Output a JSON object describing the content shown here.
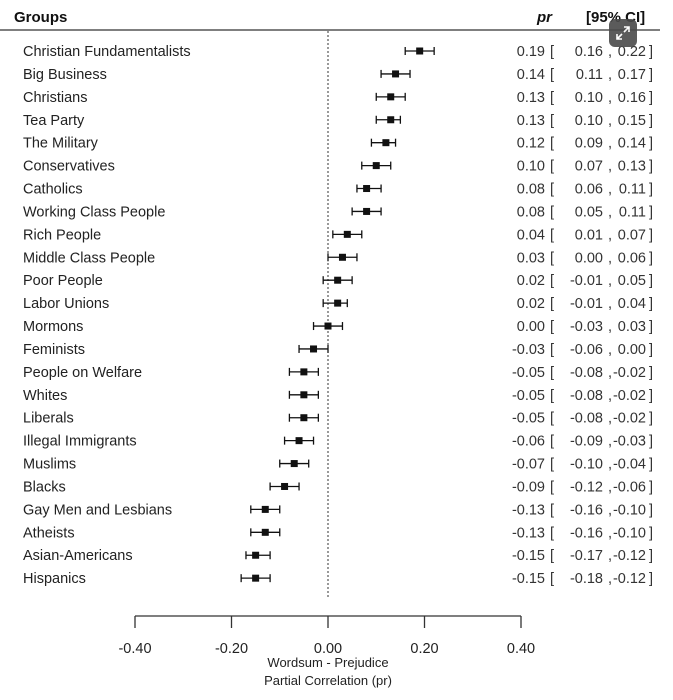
{
  "chart_data": {
    "type": "forest",
    "header": {
      "groups": "Groups",
      "pr": "pr",
      "ci": "[95% CI]"
    },
    "xlabel_line1": "Wordsum - Prejudice",
    "xlabel_line2": "Partial Correlation (pr)",
    "xlim": [
      -0.4,
      0.4
    ],
    "xticks": [
      -0.4,
      -0.2,
      0.0,
      0.2,
      0.4
    ],
    "xtick_labels": [
      "-0.40",
      "-0.20",
      "0.00",
      "0.20",
      "0.40"
    ],
    "reference_line": 0,
    "rows": [
      {
        "group": "Christian Fundamentalists",
        "pr": 0.19,
        "lo": 0.16,
        "hi": 0.22
      },
      {
        "group": "Big Business",
        "pr": 0.14,
        "lo": 0.11,
        "hi": 0.17
      },
      {
        "group": "Christians",
        "pr": 0.13,
        "lo": 0.1,
        "hi": 0.16
      },
      {
        "group": "Tea Party",
        "pr": 0.13,
        "lo": 0.1,
        "hi": 0.15
      },
      {
        "group": "The Military",
        "pr": 0.12,
        "lo": 0.09,
        "hi": 0.14
      },
      {
        "group": "Conservatives",
        "pr": 0.1,
        "lo": 0.07,
        "hi": 0.13
      },
      {
        "group": "Catholics",
        "pr": 0.08,
        "lo": 0.06,
        "hi": 0.11
      },
      {
        "group": "Working Class People",
        "pr": 0.08,
        "lo": 0.05,
        "hi": 0.11
      },
      {
        "group": "Rich People",
        "pr": 0.04,
        "lo": 0.01,
        "hi": 0.07
      },
      {
        "group": "Middle Class People",
        "pr": 0.03,
        "lo": 0.0,
        "hi": 0.06
      },
      {
        "group": "Poor People",
        "pr": 0.02,
        "lo": -0.01,
        "hi": 0.05
      },
      {
        "group": "Labor Unions",
        "pr": 0.02,
        "lo": -0.01,
        "hi": 0.04
      },
      {
        "group": "Mormons",
        "pr": 0.0,
        "lo": -0.03,
        "hi": 0.03
      },
      {
        "group": "Feminists",
        "pr": -0.03,
        "lo": -0.06,
        "hi": 0.0
      },
      {
        "group": "People on Welfare",
        "pr": -0.05,
        "lo": -0.08,
        "hi": -0.02
      },
      {
        "group": "Whites",
        "pr": -0.05,
        "lo": -0.08,
        "hi": -0.02
      },
      {
        "group": "Liberals",
        "pr": -0.05,
        "lo": -0.08,
        "hi": -0.02
      },
      {
        "group": "Illegal Immigrants",
        "pr": -0.06,
        "lo": -0.09,
        "hi": -0.03
      },
      {
        "group": "Muslims",
        "pr": -0.07,
        "lo": -0.1,
        "hi": -0.04
      },
      {
        "group": "Blacks",
        "pr": -0.09,
        "lo": -0.12,
        "hi": -0.06
      },
      {
        "group": "Gay Men and Lesbians",
        "pr": -0.13,
        "lo": -0.16,
        "hi": -0.1
      },
      {
        "group": "Atheists",
        "pr": -0.13,
        "lo": -0.16,
        "hi": -0.1
      },
      {
        "group": "Asian-Americans",
        "pr": -0.15,
        "lo": -0.17,
        "hi": -0.12
      },
      {
        "group": "Hispanics",
        "pr": -0.15,
        "lo": -0.18,
        "hi": -0.12
      }
    ]
  },
  "overlay": {
    "expand_icon": "expand-icon"
  }
}
